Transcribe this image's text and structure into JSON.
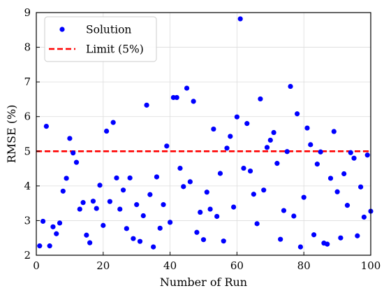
{
  "chart_data": {
    "type": "scatter",
    "xlabel": "Number of Run",
    "ylabel": "RMSE (%)",
    "xlim": [
      0,
      100
    ],
    "ylim": [
      2,
      9
    ],
    "xticks": [
      "0",
      "20",
      "40",
      "60",
      "80",
      "100"
    ],
    "yticks": [
      "2",
      "3",
      "4",
      "5",
      "6",
      "7",
      "8",
      "9"
    ],
    "grid": true,
    "legend_position": "top-left",
    "series": [
      {
        "name": "Solution",
        "color": "#0000ff",
        "x": [
          1,
          2,
          3,
          4,
          5,
          6,
          7,
          8,
          9,
          10,
          11,
          12,
          13,
          14,
          15,
          16,
          17,
          18,
          19,
          20,
          21,
          22,
          23,
          24,
          25,
          26,
          27,
          28,
          29,
          30,
          31,
          32,
          33,
          34,
          35,
          36,
          37,
          38,
          39,
          40,
          41,
          42,
          43,
          44,
          45,
          46,
          47,
          48,
          49,
          50,
          51,
          52,
          53,
          54,
          55,
          56,
          57,
          58,
          59,
          60,
          61,
          62,
          63,
          64,
          65,
          66,
          67,
          68,
          69,
          70,
          71,
          72,
          73,
          74,
          75,
          76,
          77,
          78,
          79,
          80,
          81,
          82,
          83,
          84,
          85,
          86,
          87,
          88,
          89,
          90,
          91,
          92,
          93,
          94,
          95,
          96,
          97,
          98,
          99,
          100
        ],
        "y": [
          2.27,
          2.98,
          5.72,
          2.27,
          2.82,
          2.62,
          2.93,
          3.85,
          4.22,
          5.37,
          4.95,
          4.68,
          3.33,
          3.52,
          2.58,
          2.36,
          3.56,
          3.35,
          4.02,
          2.86,
          5.58,
          3.55,
          5.83,
          4.23,
          3.33,
          3.88,
          2.77,
          4.23,
          2.48,
          3.46,
          2.4,
          3.14,
          6.33,
          3.75,
          2.24,
          4.26,
          2.78,
          3.46,
          5.15,
          2.95,
          6.55,
          6.55,
          4.51,
          3.98,
          6.82,
          4.12,
          6.44,
          2.66,
          3.24,
          2.45,
          3.82,
          3.33,
          5.64,
          3.12,
          4.36,
          2.41,
          5.09,
          5.43,
          3.39,
          5.99,
          8.82,
          4.51,
          5.8,
          4.43,
          3.76,
          2.91,
          6.51,
          3.88,
          5.11,
          5.32,
          5.54,
          4.65,
          2.46,
          3.29,
          4.99,
          6.87,
          3.13,
          6.08,
          2.24,
          3.67,
          5.67,
          5.19,
          2.59,
          4.63,
          4.98,
          2.35,
          2.32,
          4.22,
          5.57,
          3.83,
          2.5,
          4.35,
          3.44,
          4.96,
          4.8,
          2.56,
          3.97,
          3.1,
          4.89,
          3.27
        ]
      },
      {
        "name": "Limit (5%)",
        "color": "#ff0000",
        "style": "dashed",
        "y_constant": 5
      }
    ]
  }
}
